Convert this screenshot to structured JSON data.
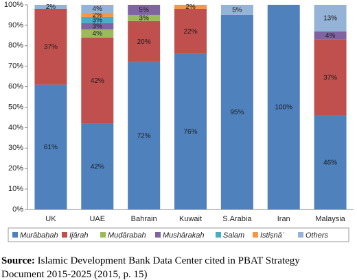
{
  "chart_data": {
    "type": "stacked_bar",
    "categories": [
      "UK",
      "UAE",
      "Bahrain",
      "Kuwait",
      "S.Arabia",
      "Iran",
      "Malaysia"
    ],
    "series": [
      {
        "name": "Murābaḥah",
        "color": "#4f81bd",
        "values": [
          61,
          42,
          72,
          76,
          95,
          100,
          46
        ],
        "value_labels": [
          "61%",
          "42%",
          "72%",
          "76%",
          "95%",
          "100%",
          "46%"
        ]
      },
      {
        "name": "Ijārah",
        "color": "#c0504d",
        "values": [
          37,
          42,
          20,
          22,
          null,
          null,
          37
        ],
        "value_labels": [
          "37%",
          "42%",
          "20%",
          "22%",
          null,
          null,
          "37%"
        ]
      },
      {
        "name": "Muḍārabah",
        "color": "#9bbb59",
        "values": [
          null,
          4,
          3,
          null,
          null,
          null,
          null
        ],
        "value_labels": [
          null,
          "4%",
          "3%",
          null,
          null,
          null,
          null
        ]
      },
      {
        "name": "Mushārakah",
        "color": "#8064a2",
        "values": [
          null,
          3,
          5,
          null,
          null,
          null,
          4
        ],
        "value_labels": [
          null,
          "3%",
          "5%",
          null,
          null,
          null,
          "4%"
        ]
      },
      {
        "name": "Salam",
        "color": "#4bacc6",
        "values": [
          null,
          3,
          null,
          null,
          null,
          null,
          null
        ],
        "value_labels": [
          null,
          "3%",
          null,
          null,
          null,
          null,
          null
        ]
      },
      {
        "name": "Istiṣnāʿ",
        "color": "#f79646",
        "values": [
          null,
          2,
          null,
          2,
          null,
          null,
          null
        ],
        "value_labels": [
          null,
          "2%",
          null,
          "2%",
          null,
          null,
          null
        ]
      },
      {
        "name": "Others",
        "color": "#95b3d7",
        "values": [
          2,
          4,
          null,
          null,
          5,
          null,
          13
        ],
        "value_labels": [
          "2%",
          "4%",
          null,
          null,
          "5%",
          null,
          "13%"
        ]
      }
    ],
    "ylim": [
      0,
      100
    ],
    "yticks": [
      {
        "value": 0,
        "label": "0%"
      },
      {
        "value": 10,
        "label": "10%"
      },
      {
        "value": 20,
        "label": "20%"
      },
      {
        "value": 30,
        "label": "30%"
      },
      {
        "value": 40,
        "label": "40%"
      },
      {
        "value": 50,
        "label": "50%"
      },
      {
        "value": 60,
        "label": "60%"
      },
      {
        "value": 70,
        "label": "70%"
      },
      {
        "value": 80,
        "label": "80%"
      },
      {
        "value": 90,
        "label": "90%"
      },
      {
        "value": 100,
        "label": "100%"
      }
    ],
    "grid": false,
    "legend": "bottom",
    "source_label": "Source:",
    "source_text_line1": "Islamic Development Bank Data Center cited in PBAT Strategy",
    "source_text_line2": "Document 2015-2025 (2015, p. 15)"
  }
}
